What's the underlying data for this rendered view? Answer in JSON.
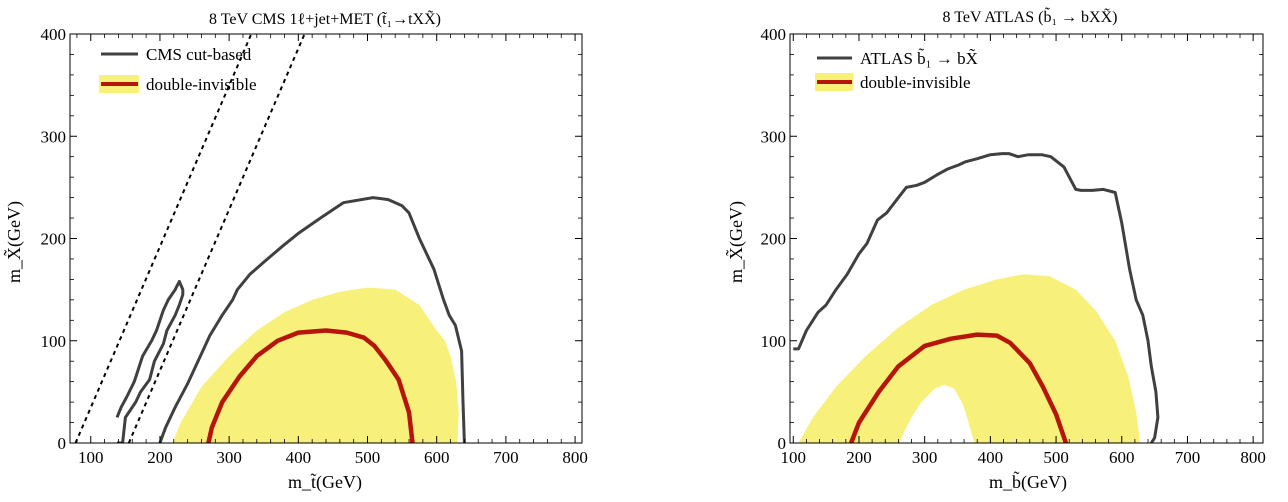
{
  "chart_data": [
    {
      "type": "line",
      "title": "8 TeV CMS 1ℓ+jet+MET (t̃₁→tXX̃)",
      "xlabel": "m_t̃(GeV)",
      "ylabel": "m_X̃(GeV)",
      "xlim": [
        70,
        810
      ],
      "ylim": [
        0,
        400
      ],
      "xticks": [
        100,
        200,
        300,
        400,
        500,
        600,
        700,
        800
      ],
      "yticks": [
        0,
        100,
        200,
        300,
        400
      ],
      "grid": false,
      "legend_position": "top-left",
      "legend": [
        {
          "label": "CMS cut-based",
          "color": "#404040"
        },
        {
          "label": "double-invisible",
          "color": "#b5150b",
          "fill": "#f7f07a"
        }
      ],
      "diagonals": [
        {
          "x": [
            78,
            332
          ],
          "y": [
            0,
            400
          ]
        },
        {
          "x": [
            155,
            409
          ],
          "y": [
            0,
            400
          ]
        }
      ],
      "series": [
        {
          "name": "CMS cut-based",
          "color": "#404040",
          "x": [
            138,
            146,
            150,
            165,
            172,
            185,
            192,
            205,
            210,
            222,
            228,
            233,
            233,
            228,
            222,
            212,
            205,
            195,
            188,
            175,
            163,
            152,
            144,
            138
          ],
          "y": [
            0,
            0,
            25,
            40,
            50,
            62,
            80,
            97,
            110,
            125,
            135,
            145,
            150,
            158,
            150,
            140,
            130,
            110,
            100,
            85,
            60,
            45,
            35,
            25
          ]
        },
        {
          "name": "CMS cut-based",
          "color": "#404040",
          "x": [
            200,
            208,
            222,
            240,
            255,
            272,
            290,
            305,
            312,
            330,
            352,
            378,
            400,
            432,
            465,
            508,
            530,
            550,
            560,
            575,
            596,
            610,
            618,
            627,
            636,
            638,
            640
          ],
          "y": [
            0,
            15,
            35,
            58,
            80,
            105,
            125,
            140,
            150,
            165,
            178,
            193,
            205,
            220,
            235,
            240,
            238,
            232,
            225,
            200,
            170,
            140,
            125,
            115,
            90,
            40,
            0
          ]
        },
        {
          "name": "double-invisible",
          "color": "#b5150b",
          "x": [
            270,
            275,
            290,
            315,
            340,
            370,
            400,
            440,
            470,
            495,
            510,
            525,
            532,
            545,
            560,
            565
          ],
          "y": [
            0,
            15,
            40,
            65,
            85,
            100,
            108,
            110,
            108,
            103,
            95,
            82,
            75,
            62,
            30,
            0
          ]
        }
      ],
      "band": {
        "name": "double-invisible",
        "color": "#f7f07a",
        "x": [
          218,
          230,
          260,
          300,
          340,
          380,
          420,
          460,
          500,
          540,
          575,
          600,
          612,
          620,
          628,
          632,
          630
        ],
        "y": [
          0,
          20,
          55,
          85,
          110,
          128,
          140,
          148,
          152,
          150,
          135,
          110,
          100,
          85,
          60,
          30,
          0
        ]
      }
    },
    {
      "type": "line",
      "title": "8 TeV ATLAS (b̃₁ → bXX̃)",
      "xlabel": "m_b̃(GeV)",
      "ylabel": "m_X̃(GeV)",
      "xlim": [
        95,
        815
      ],
      "ylim": [
        0,
        400
      ],
      "xticks": [
        100,
        200,
        300,
        400,
        500,
        600,
        700,
        800
      ],
      "yticks": [
        0,
        100,
        200,
        300,
        400
      ],
      "grid": false,
      "legend_position": "top-left",
      "legend": [
        {
          "label": "ATLAS  b̃₁ → bX̃",
          "color": "#404040"
        },
        {
          "label": "double-invisible",
          "color": "#b5150b",
          "fill": "#f7f07a"
        }
      ],
      "series": [
        {
          "name": "ATLAS  b̃₁ → bX̃",
          "color": "#404040",
          "x": [
            100,
            108,
            120,
            138,
            150,
            165,
            182,
            200,
            212,
            228,
            242,
            260,
            272,
            288,
            300,
            318,
            335,
            352,
            362,
            380,
            400,
            418,
            428,
            442,
            458,
            478,
            492,
            512,
            530,
            538,
            555,
            572,
            590,
            600,
            612,
            622,
            632,
            640,
            645,
            652,
            655,
            650,
            645
          ],
          "y": [
            92,
            92,
            110,
            128,
            135,
            150,
            165,
            185,
            195,
            218,
            225,
            240,
            250,
            252,
            255,
            262,
            268,
            272,
            275,
            278,
            282,
            283,
            283,
            280,
            282,
            282,
            280,
            270,
            248,
            247,
            247,
            248,
            245,
            215,
            170,
            140,
            125,
            100,
            75,
            50,
            25,
            5,
            0
          ]
        },
        {
          "name": "double-invisible",
          "color": "#b5150b",
          "x": [
            188,
            200,
            230,
            260,
            300,
            340,
            380,
            410,
            430,
            460,
            480,
            500,
            515
          ],
          "y": [
            0,
            20,
            50,
            75,
            95,
            102,
            106,
            105,
            98,
            78,
            55,
            28,
            0
          ]
        }
      ],
      "band": {
        "name": "double-invisible",
        "color": "#f7f07a",
        "x": [
          108,
          130,
          165,
          210,
          260,
          310,
          360,
          410,
          450,
          490,
          530,
          560,
          590,
          610,
          622,
          628
        ],
        "y": [
          0,
          25,
          55,
          85,
          113,
          135,
          150,
          160,
          165,
          163,
          150,
          130,
          100,
          65,
          30,
          0
        ]
      },
      "hole": {
        "x": [
          262,
          268,
          280,
          295,
          315,
          330,
          345,
          358,
          366,
          372,
          376
        ],
        "y": [
          0,
          10,
          25,
          40,
          53,
          57,
          53,
          38,
          22,
          8,
          0
        ]
      }
    }
  ]
}
